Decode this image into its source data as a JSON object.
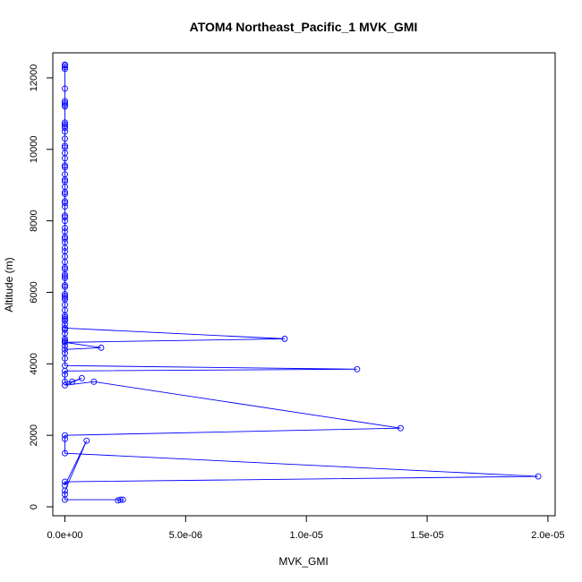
{
  "chart_data": {
    "type": "line",
    "title": "ATOM4 Northeast_Pacific_1 MVK_GMI",
    "xlabel": "MVK_GMI",
    "ylabel": "Altitude (m)",
    "xlim": [
      -5e-07,
      2.03e-05
    ],
    "ylim": [
      -250,
      12700
    ],
    "x_ticks": [
      {
        "value": 0,
        "label": "0.0e+00"
      },
      {
        "value": 5e-06,
        "label": "5.0e-06"
      },
      {
        "value": 1e-05,
        "label": "1.0e-05"
      },
      {
        "value": 1.5e-05,
        "label": "1.5e-05"
      },
      {
        "value": 2e-05,
        "label": "2.0e-05"
      }
    ],
    "y_ticks": [
      {
        "value": 0,
        "label": "0"
      },
      {
        "value": 2000,
        "label": "2000"
      },
      {
        "value": 4000,
        "label": "4000"
      },
      {
        "value": 6000,
        "label": "6000"
      },
      {
        "value": 8000,
        "label": "8000"
      },
      {
        "value": 10000,
        "label": "10000"
      },
      {
        "value": 12000,
        "label": "12000"
      }
    ],
    "series": [
      {
        "color": "#0000ff",
        "marker": "open-circle",
        "x": [
          0,
          0,
          0,
          0,
          0,
          0,
          0,
          0,
          0,
          0,
          0,
          0,
          0,
          0,
          0,
          0,
          0,
          0,
          0,
          0,
          0,
          0,
          0,
          0,
          0,
          0,
          0,
          0,
          0,
          0,
          0,
          0,
          0,
          0,
          0,
          0,
          0,
          0,
          0,
          0,
          0,
          0,
          0,
          0,
          0,
          0,
          0,
          0,
          0,
          0,
          0,
          0,
          0,
          0,
          0,
          0,
          0,
          0,
          0,
          0,
          0,
          0,
          0,
          0,
          0,
          0,
          1.5e-06,
          0,
          0,
          0,
          0,
          9.1e-06,
          0,
          0,
          0,
          1.21e-05,
          0,
          0,
          0,
          3e-07,
          7e-07,
          0,
          1.2e-06,
          1.39e-05,
          0,
          0,
          0,
          1.96e-05,
          0,
          0,
          9e-07,
          0,
          0,
          0,
          2.3e-06,
          2.4e-06,
          2.2e-06
        ],
        "y": [
          12370,
          12350,
          12300,
          12250,
          11700,
          11350,
          11300,
          11250,
          11200,
          10750,
          10700,
          10650,
          10600,
          10500,
          10300,
          10100,
          10050,
          9900,
          9750,
          9550,
          9500,
          9300,
          9150,
          9100,
          8950,
          8800,
          8750,
          8550,
          8500,
          8400,
          8150,
          8100,
          8000,
          7800,
          7700,
          7550,
          7500,
          7400,
          7250,
          7150,
          7000,
          6850,
          6700,
          6650,
          6500,
          6450,
          6400,
          6200,
          6150,
          5950,
          5900,
          5850,
          5800,
          5650,
          5500,
          5350,
          5300,
          5250,
          5200,
          5100,
          5000,
          4950,
          4850,
          4700,
          4650,
          4600,
          4450,
          4400,
          4300,
          4150,
          5000,
          4700,
          4600,
          4500,
          3950,
          3850,
          3800,
          3700,
          3500,
          3500,
          3600,
          3400,
          3500,
          2200,
          2000,
          1900,
          1500,
          850,
          700,
          600,
          1850,
          450,
          350,
          200,
          200,
          200,
          180
        ]
      }
    ]
  }
}
